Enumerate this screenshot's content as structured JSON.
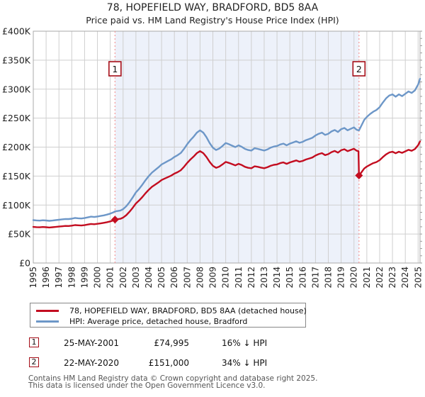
{
  "chart_data": {
    "type": "line",
    "title": "78, HOPEFIELD WAY, BRADFORD, BD5 8AA",
    "subtitle": "Price paid vs. HM Land Registry's House Price Index (HPI)",
    "xlabel": "",
    "ylabel": "",
    "grid": true,
    "legend_position": "bottom",
    "x_range": [
      1995,
      2025.15
    ],
    "ylim_gbp": [
      0,
      400000
    ],
    "y_tick_labels": [
      "£0",
      "£50K",
      "£100K",
      "£150K",
      "£200K",
      "£250K",
      "£300K",
      "£350K",
      "£400K"
    ],
    "x_tick_years": [
      1995,
      1996,
      1997,
      1998,
      1999,
      2000,
      2001,
      2002,
      2003,
      2004,
      2005,
      2006,
      2007,
      2008,
      2009,
      2010,
      2011,
      2012,
      2013,
      2014,
      2015,
      2016,
      2017,
      2018,
      2019,
      2020,
      2021,
      2022,
      2023,
      2024,
      2025
    ],
    "shaded_region_years": [
      2001.37,
      2020.39
    ],
    "event_lines": [
      {
        "label": "1",
        "x": 2001.37
      },
      {
        "label": "2",
        "x": 2020.39
      }
    ],
    "x_years": [
      1995,
      1995.25,
      1995.5,
      1995.75,
      1996,
      1996.25,
      1996.5,
      1996.75,
      1997,
      1997.25,
      1997.5,
      1997.75,
      1998,
      1998.25,
      1998.5,
      1998.75,
      1999,
      1999.25,
      1999.5,
      1999.75,
      2000,
      2000.25,
      2000.5,
      2000.75,
      2001,
      2001.2,
      2001.37,
      2001.6,
      2001.8,
      2002,
      2002.25,
      2002.5,
      2002.75,
      2003,
      2003.25,
      2003.5,
      2003.75,
      2004,
      2004.25,
      2004.5,
      2004.75,
      2005,
      2005.25,
      2005.5,
      2005.75,
      2006,
      2006.25,
      2006.5,
      2006.75,
      2007,
      2007.25,
      2007.5,
      2007.75,
      2008,
      2008.25,
      2008.5,
      2008.75,
      2009,
      2009.25,
      2009.5,
      2009.75,
      2010,
      2010.25,
      2010.5,
      2010.75,
      2011,
      2011.25,
      2011.5,
      2011.75,
      2012,
      2012.25,
      2012.5,
      2012.75,
      2013,
      2013.25,
      2013.5,
      2013.75,
      2014,
      2014.25,
      2014.5,
      2014.75,
      2015,
      2015.25,
      2015.5,
      2015.75,
      2016,
      2016.25,
      2016.5,
      2016.75,
      2017,
      2017.25,
      2017.5,
      2017.75,
      2018,
      2018.25,
      2018.5,
      2018.75,
      2019,
      2019.25,
      2019.5,
      2019.75,
      2020,
      2020.2,
      2020.35,
      2020.39,
      2020.6,
      2020.8,
      2021,
      2021.25,
      2021.5,
      2021.75,
      2022,
      2022.25,
      2022.5,
      2022.75,
      2023,
      2023.25,
      2023.5,
      2023.75,
      2024,
      2024.25,
      2024.5,
      2024.75,
      2025,
      2025.15
    ],
    "series": [
      {
        "name": "78, HOPEFIELD WAY, BRADFORD, BD5 8AA (detached house)",
        "color": "#c30d20",
        "values_gbp_k": [
          62.3,
          61.9,
          61.7,
          62.2,
          61.8,
          61.3,
          61.8,
          62.3,
          62.9,
          63.4,
          64.0,
          63.9,
          64.5,
          65.5,
          65.1,
          64.7,
          65.3,
          66.4,
          67.4,
          66.9,
          67.6,
          68.4,
          69.3,
          70.4,
          71.8,
          73.3,
          75.0,
          75.7,
          76.3,
          78.4,
          82.6,
          88.5,
          95.2,
          102.8,
          107.9,
          113.8,
          120.5,
          126.4,
          131.5,
          135.2,
          139.0,
          143.2,
          145.8,
          148.3,
          150.8,
          154.2,
          156.7,
          160.1,
          166.0,
          172.7,
          178.6,
          183.7,
          189.6,
          193.0,
          189.6,
          182.9,
          174.4,
          167.7,
          164.3,
          166.4,
          170.2,
          174.4,
          172.7,
          170.6,
          168.5,
          171.1,
          169.0,
          166.0,
          164.3,
          163.5,
          166.8,
          166.0,
          164.7,
          163.5,
          165.2,
          167.7,
          169.4,
          170.2,
          172.3,
          173.6,
          171.1,
          173.6,
          175.3,
          177.0,
          174.8,
          176.1,
          178.6,
          180.3,
          182.0,
          185.4,
          187.9,
          189.6,
          186.2,
          187.9,
          191.3,
          193.4,
          190.4,
          194.6,
          196.3,
          193.0,
          195.1,
          197.2,
          193.8,
          193.0,
          151.0,
          157.1,
          163.0,
          166.3,
          169.6,
          172.3,
          174.2,
          177.5,
          182.8,
          187.4,
          190.7,
          192.1,
          189.4,
          192.1,
          190.1,
          192.7,
          195.4,
          193.7,
          196.7,
          203.3,
          209.9
        ]
      },
      {
        "name": "HPI: Average price, detached house, Bradford",
        "color": "#6d97c8",
        "values_gbp_k": [
          74.0,
          73.5,
          73.2,
          73.8,
          73.4,
          72.8,
          73.3,
          74.0,
          74.6,
          75.3,
          76.0,
          75.8,
          76.5,
          77.8,
          77.2,
          76.8,
          77.5,
          78.8,
          80.0,
          79.4,
          80.2,
          81.2,
          82.2,
          83.6,
          85.2,
          87.0,
          89.0,
          89.8,
          90.6,
          93.0,
          98.0,
          105.0,
          113.0,
          122.0,
          128.0,
          135.0,
          143.0,
          150.0,
          156.0,
          160.5,
          165.0,
          170.0,
          173.0,
          176.0,
          179.0,
          183.0,
          186.0,
          190.0,
          197.0,
          205.0,
          212.0,
          218.0,
          225.0,
          229.0,
          225.0,
          217.0,
          207.0,
          199.0,
          195.0,
          197.5,
          202.0,
          207.0,
          205.0,
          202.5,
          200.0,
          203.0,
          200.5,
          197.0,
          195.0,
          194.0,
          198.0,
          197.0,
          195.5,
          194.0,
          196.0,
          199.0,
          201.0,
          202.0,
          204.5,
          206.0,
          203.0,
          206.0,
          208.0,
          210.0,
          207.5,
          209.0,
          212.0,
          214.0,
          216.0,
          220.0,
          223.0,
          225.0,
          221.0,
          223.0,
          227.0,
          229.5,
          226.0,
          231.0,
          233.0,
          229.0,
          231.5,
          234.0,
          230.0,
          229.0,
          228.8,
          238.0,
          247.0,
          252.0,
          257.0,
          261.0,
          264.0,
          269.0,
          277.0,
          284.0,
          289.0,
          291.0,
          287.0,
          291.0,
          288.0,
          292.0,
          296.0,
          293.5,
          298.0,
          308.0,
          318.0
        ]
      }
    ],
    "sale_points": [
      {
        "x": 2001.37,
        "value_gbp_k": 75.0
      },
      {
        "x": 2020.39,
        "value_gbp_k": 151.0
      }
    ],
    "colors": {
      "shade": "#edf1fa",
      "grid": "#cfcfcf",
      "border": "#a9a9a9",
      "event_line": "#f49a9a",
      "marker_border": "#a50d17",
      "tick": "#999999"
    }
  },
  "legend": {
    "items": [
      {
        "label": "78, HOPEFIELD WAY, BRADFORD, BD5 8AA (detached house)",
        "color": "#c30d20"
      },
      {
        "label": "HPI: Average price, detached house, Bradford",
        "color": "#6d97c8"
      }
    ]
  },
  "transactions": [
    {
      "num": "1",
      "date": "25-MAY-2001",
      "price": "£74,995",
      "hpi_diff": "16% ↓ HPI"
    },
    {
      "num": "2",
      "date": "22-MAY-2020",
      "price": "£151,000",
      "hpi_diff": "34% ↓ HPI"
    }
  ],
  "footer": {
    "line1": "Contains HM Land Registry data © Crown copyright and database right 2025.",
    "line2": "This data is licensed under the Open Government Licence v3.0."
  }
}
